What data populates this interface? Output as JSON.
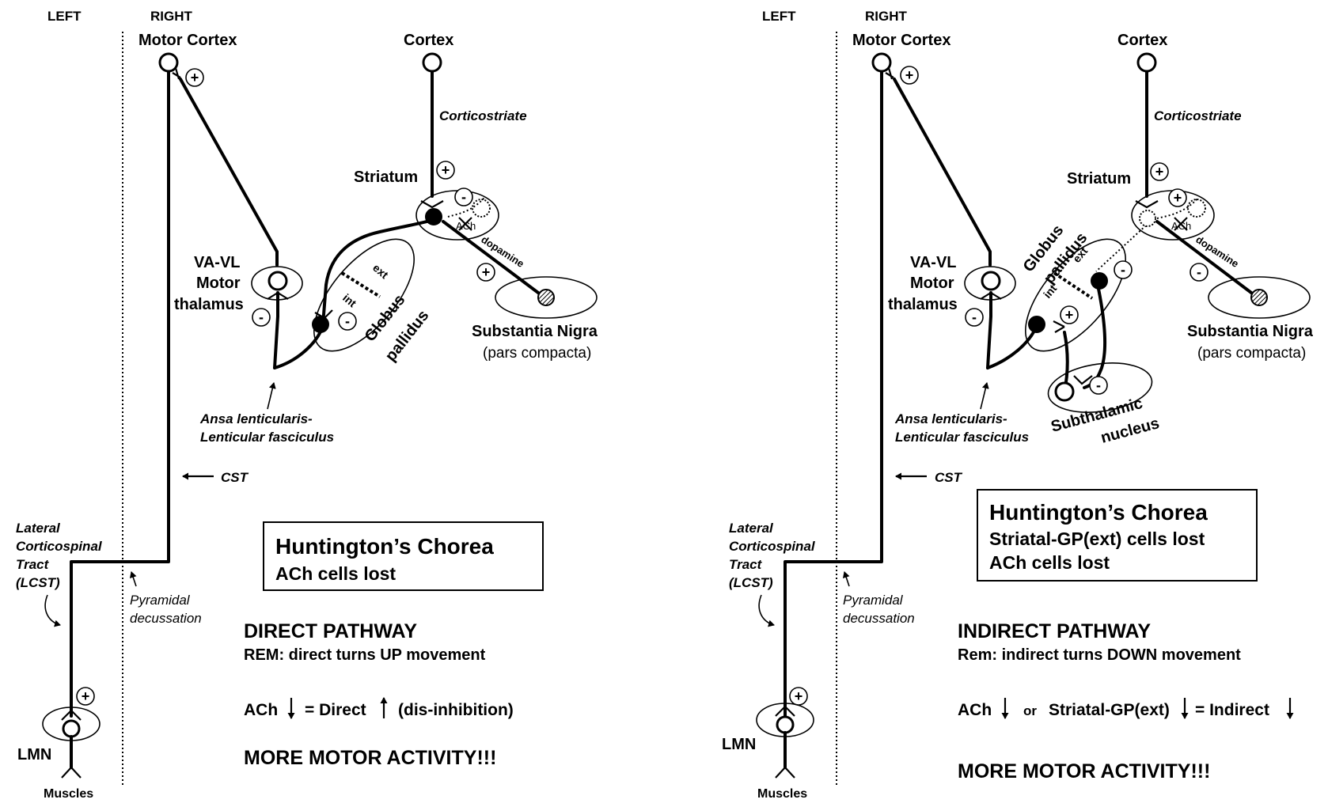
{
  "left_panel": {
    "side_left": "LEFT",
    "side_right": "RIGHT",
    "motor_cortex": "Motor Cortex",
    "cortex": "Cortex",
    "corticostriate": "Corticostriate",
    "striatum": "Striatum",
    "ach": "ACh",
    "dopamine": "dopamine",
    "vavl_1": "VA-VL",
    "vavl_2": "Motor",
    "vavl_3": "thalamus",
    "gp_ext": "ext",
    "gp_int": "int",
    "gp_label_1": "Globus",
    "gp_label_2": "pallidus",
    "sn_1": "Substantia Nigra",
    "sn_2": "(pars compacta)",
    "ansa_1": "Ansa lenticularis-",
    "ansa_2": "Lenticular fasciculus",
    "cst": "CST",
    "lcst_1": "Lateral",
    "lcst_2": "Corticospinal",
    "lcst_3": "Tract",
    "lcst_4": "(LCST)",
    "pyr_1": "Pyramidal",
    "pyr_2": "decussation",
    "box_title": "Huntington’s Chorea",
    "box_line1": "ACh cells lost",
    "pathway_title": "DIRECT PATHWAY",
    "rem": "REM:  direct turns UP movement",
    "eq_a": "ACh",
    "eq_b": "= Direct",
    "eq_c": "(dis-inhibition)",
    "more": "MORE MOTOR ACTIVITY!!!",
    "lmn": "LMN",
    "muscles": "Muscles",
    "plus": "+",
    "minus": "-"
  },
  "right_panel": {
    "side_left": "LEFT",
    "side_right": "RIGHT",
    "motor_cortex": "Motor Cortex",
    "cortex": "Cortex",
    "corticostriate": "Corticostriate",
    "striatum": "Striatum",
    "ach": "ACh",
    "dopamine": "dopamine",
    "vavl_1": "VA-VL",
    "vavl_2": "Motor",
    "vavl_3": "thalamus",
    "gp_ext": "ext",
    "gp_int": "int",
    "gp_label_1": "Globus",
    "gp_label_2": "pallidus",
    "stn_1": "Subthalamic",
    "stn_2": "nucleus",
    "sn_1": "Substantia Nigra",
    "sn_2": "(pars compacta)",
    "ansa_1": "Ansa lenticularis-",
    "ansa_2": "Lenticular fasciculus",
    "cst": "CST",
    "lcst_1": "Lateral",
    "lcst_2": "Corticospinal",
    "lcst_3": "Tract",
    "lcst_4": "(LCST)",
    "pyr_1": "Pyramidal",
    "pyr_2": "decussation",
    "box_title": "Huntington’s Chorea",
    "box_line1": "Striatal-GP(ext) cells lost",
    "box_line2": "ACh cells lost",
    "pathway_title": "INDIRECT PATHWAY",
    "rem": "Rem:  indirect turns DOWN movement",
    "eq_a": "ACh",
    "eq_or": "or",
    "eq_b": "Striatal-GP(ext)",
    "eq_c": "= Indirect",
    "more": "MORE MOTOR ACTIVITY!!!",
    "lmn": "LMN",
    "muscles": "Muscles",
    "plus": "+",
    "minus": "-"
  }
}
